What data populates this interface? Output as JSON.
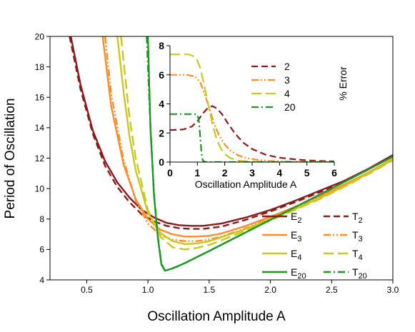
{
  "chart_data": [
    {
      "type": "line",
      "xlabel": "Oscillation Amplitude A",
      "ylabel": "Period of Oscillation",
      "xlim": [
        0.2,
        3.0
      ],
      "ylim": [
        4,
        20
      ],
      "xticks": [
        "0.5",
        "1.0",
        "1.5",
        "2.0",
        "2.5",
        "3.0"
      ],
      "yticks": [
        "4",
        "6",
        "8",
        "10",
        "12",
        "14",
        "16",
        "18",
        "20"
      ],
      "grid": false,
      "legend_position": "bottom-right",
      "series": [
        {
          "name": "E",
          "sub": "2",
          "style": "solid",
          "color": "#8b1a1a",
          "x": [
            0.37,
            0.45,
            0.55,
            0.65,
            0.75,
            0.85,
            0.95,
            1.05,
            1.15,
            1.25,
            1.35,
            1.45,
            1.6,
            1.8,
            2.0,
            2.2,
            2.4,
            2.6,
            2.8,
            3.0
          ],
          "y": [
            20,
            16.8,
            13.8,
            11.8,
            10.4,
            9.4,
            8.6,
            8.1,
            7.75,
            7.6,
            7.55,
            7.55,
            7.7,
            8.1,
            8.6,
            9.2,
            9.85,
            10.5,
            11.3,
            12.2
          ]
        },
        {
          "name": "T",
          "sub": "2",
          "style": "dashed",
          "color": "#8b1a1a",
          "x": [
            0.36,
            0.45,
            0.55,
            0.65,
            0.75,
            0.85,
            0.95,
            1.05,
            1.15,
            1.25,
            1.35,
            1.45,
            1.6,
            1.8,
            2.0,
            2.2,
            2.4,
            2.6,
            2.8,
            3.0
          ],
          "y": [
            20,
            16.5,
            13.6,
            11.5,
            10.1,
            9.1,
            8.3,
            7.85,
            7.55,
            7.4,
            7.35,
            7.35,
            7.5,
            7.95,
            8.5,
            9.1,
            9.75,
            10.45,
            11.25,
            12.15
          ]
        },
        {
          "name": "E",
          "sub": "3",
          "style": "solid",
          "color": "#ff8c28",
          "x": [
            0.63,
            0.7,
            0.8,
            0.9,
            1.0,
            1.1,
            1.2,
            1.3,
            1.4,
            1.5,
            1.6,
            1.8,
            2.0,
            2.2,
            2.4,
            2.6,
            2.8,
            3.0
          ],
          "y": [
            20,
            15.4,
            11.6,
            9.3,
            8.0,
            7.3,
            7.0,
            6.85,
            6.85,
            6.9,
            7.05,
            7.55,
            8.15,
            8.8,
            9.5,
            10.25,
            11.05,
            11.95
          ]
        },
        {
          "name": "T",
          "sub": "3",
          "style": "dashdotdot",
          "color": "#ff8c28",
          "x": [
            0.65,
            0.7,
            0.8,
            0.9,
            1.0,
            1.1,
            1.2,
            1.3,
            1.4,
            1.5,
            1.6,
            1.8,
            2.0,
            2.2,
            2.4,
            2.6,
            2.8,
            3.0
          ],
          "y": [
            20,
            16.2,
            11.9,
            9.2,
            7.7,
            6.95,
            6.65,
            6.55,
            6.55,
            6.65,
            6.85,
            7.4,
            8.05,
            8.75,
            9.45,
            10.2,
            11.05,
            11.95
          ]
        },
        {
          "name": "E",
          "sub": "4",
          "style": "solid",
          "color": "#c8c81e",
          "x": [
            0.75,
            0.8,
            0.85,
            0.9,
            1.0,
            1.1,
            1.2,
            1.3,
            1.4,
            1.5,
            1.6,
            1.8,
            2.0,
            2.2,
            2.4,
            2.6,
            2.8,
            3.0
          ],
          "y": [
            20,
            16.4,
            13.4,
            11.2,
            8.4,
            7.1,
            6.55,
            6.35,
            6.4,
            6.55,
            6.8,
            7.35,
            8.0,
            8.65,
            9.35,
            10.15,
            11.0,
            11.9
          ]
        },
        {
          "name": "T",
          "sub": "4",
          "style": "longdash",
          "color": "#c8c81e",
          "x": [
            0.78,
            0.85,
            0.9,
            1.0,
            1.1,
            1.2,
            1.3,
            1.4,
            1.5,
            1.6,
            1.8,
            2.0,
            2.2,
            2.4,
            2.6,
            2.8,
            3.0
          ],
          "y": [
            20,
            14.6,
            12.0,
            8.6,
            6.85,
            6.15,
            6.0,
            6.1,
            6.3,
            6.6,
            7.25,
            7.9,
            8.6,
            9.3,
            10.1,
            10.95,
            11.85
          ]
        },
        {
          "name": "E",
          "sub": "20",
          "style": "solid",
          "color": "#1e9628",
          "x": [
            1.0,
            1.02,
            1.05,
            1.08,
            1.11,
            1.14,
            1.2,
            1.3,
            1.5,
            2.0,
            2.5,
            3.0
          ],
          "y": [
            20,
            14.0,
            9.5,
            6.8,
            5.0,
            4.6,
            4.75,
            5.1,
            5.9,
            7.95,
            10.0,
            12.1
          ]
        },
        {
          "name": "T",
          "sub": "20",
          "style": "dashdot",
          "color": "#1e9628",
          "x": [
            0.99,
            1.02,
            1.05,
            1.08,
            1.11,
            1.14,
            1.2,
            1.3,
            1.5,
            2.0,
            2.5,
            3.0
          ],
          "y": [
            20,
            14.1,
            9.6,
            6.9,
            5.05,
            4.6,
            4.75,
            5.1,
            5.9,
            7.95,
            10.0,
            12.1
          ]
        }
      ]
    },
    {
      "type": "line",
      "xlabel": "Oscillation Amplitude A",
      "ylabel": "% Error",
      "xlim": [
        0,
        6
      ],
      "ylim": [
        0,
        8
      ],
      "xticks": [
        "0",
        "1",
        "2",
        "3",
        "4",
        "5",
        "6"
      ],
      "yticks": [
        "0",
        "2",
        "4",
        "6",
        "8"
      ],
      "grid": false,
      "legend_position": "top-right",
      "series": [
        {
          "name": "2",
          "style": "dashed",
          "color": "#8b1a1a",
          "x": [
            0,
            0.5,
            0.8,
            1.0,
            1.2,
            1.4,
            1.55,
            1.7,
            1.9,
            2.1,
            2.4,
            2.7,
            3.0,
            3.5,
            4.0,
            4.5,
            5.0,
            5.5,
            6.0
          ],
          "y": [
            2.2,
            2.25,
            2.45,
            2.8,
            3.35,
            3.75,
            3.85,
            3.7,
            3.3,
            2.7,
            1.9,
            1.3,
            0.9,
            0.5,
            0.3,
            0.2,
            0.12,
            0.08,
            0.05
          ]
        },
        {
          "name": "3",
          "style": "dashdotdot",
          "color": "#ff8c28",
          "x": [
            0,
            0.6,
            0.9,
            1.1,
            1.3,
            1.45,
            1.6,
            1.8,
            2.0,
            2.2,
            2.5,
            2.8,
            3.2,
            3.6,
            4.0,
            4.5,
            5.0,
            6.0
          ],
          "y": [
            6.0,
            6.0,
            5.9,
            5.5,
            4.5,
            3.6,
            2.7,
            1.8,
            1.2,
            0.8,
            0.45,
            0.28,
            0.15,
            0.08,
            0.05,
            0.03,
            0.02,
            0.01
          ]
        },
        {
          "name": "4",
          "style": "longdash",
          "color": "#c8c81e",
          "x": [
            0,
            0.7,
            0.95,
            1.1,
            1.25,
            1.4,
            1.55,
            1.7,
            1.85,
            2.0,
            2.2,
            2.5,
            3.0,
            3.5,
            4.0,
            6.0
          ],
          "y": [
            7.4,
            7.4,
            7.2,
            6.5,
            5.3,
            3.9,
            2.6,
            1.6,
            0.95,
            0.55,
            0.28,
            0.1,
            0.03,
            0.01,
            0.0,
            0.0
          ]
        },
        {
          "name": "20",
          "style": "dashdot",
          "color": "#1e9628",
          "x": [
            0,
            0.9,
            1.0,
            1.05,
            1.1,
            1.15,
            1.2,
            1.3,
            2.0,
            6.0
          ],
          "y": [
            3.3,
            3.3,
            3.25,
            2.9,
            1.8,
            0.6,
            0.1,
            0.0,
            0.0,
            0.0
          ]
        }
      ]
    }
  ]
}
